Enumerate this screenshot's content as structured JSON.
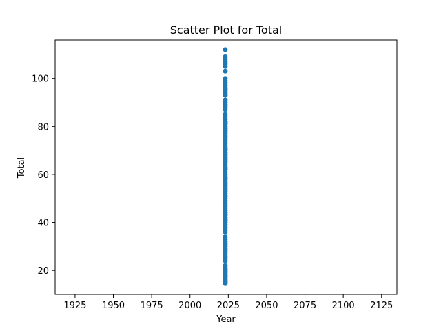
{
  "chart_data": {
    "type": "scatter",
    "title": "Scatter Plot for Total",
    "xlabel": "Year",
    "ylabel": "Total",
    "xlim": [
      1912,
      2135
    ],
    "ylim": [
      10,
      116
    ],
    "xticks": [
      1925,
      1950,
      1975,
      2000,
      2025,
      2050,
      2075,
      2100,
      2125
    ],
    "yticks": [
      20,
      40,
      60,
      80,
      100
    ],
    "grid": false,
    "marker_color": "#1f77b4",
    "series": [
      {
        "x": [
          2023,
          2023,
          2023,
          2023,
          2023,
          2023,
          2023,
          2023,
          2023,
          2023,
          2023,
          2023,
          2023,
          2023,
          2023,
          2023,
          2023,
          2023,
          2023,
          2023,
          2023,
          2023,
          2023,
          2023,
          2023,
          2023,
          2023,
          2023,
          2023,
          2023,
          2023,
          2023,
          2023,
          2023,
          2023,
          2023,
          2023,
          2023,
          2023,
          2023,
          2023,
          2023,
          2023,
          2023,
          2023,
          2023,
          2023,
          2023,
          2023,
          2023,
          2023,
          2023,
          2023,
          2023,
          2023,
          2023,
          2023,
          2023,
          2023,
          2023,
          2023,
          2023,
          2023,
          2023,
          2023,
          2023,
          2023,
          2023,
          2023,
          2023,
          2023,
          2023,
          2023,
          2023,
          2023,
          2023,
          2023,
          2023,
          2023,
          2023,
          2023,
          2023,
          2023,
          2023,
          2023,
          2023,
          2023,
          2023,
          2023,
          2023,
          2023,
          2023,
          2023,
          2023,
          2023,
          2023,
          2023,
          2023,
          2023
        ],
        "y": [
          112,
          109,
          108,
          107,
          106,
          105,
          103,
          100,
          99,
          98,
          97,
          96,
          95,
          94,
          93,
          91,
          90,
          89,
          88,
          87,
          85,
          84,
          83,
          82,
          81,
          80,
          79,
          78,
          77,
          76,
          75,
          74,
          73,
          72,
          71,
          70,
          69,
          68,
          67,
          66,
          65,
          64,
          63,
          62,
          61,
          60,
          59,
          58,
          57,
          56,
          55,
          54,
          53,
          52,
          51,
          49,
          48,
          46,
          45,
          44,
          43,
          42,
          41,
          40,
          39,
          38,
          37,
          34,
          33,
          31,
          30,
          28,
          27,
          26,
          25,
          22,
          21,
          20,
          19,
          18,
          17,
          16,
          15,
          14.5,
          15.5,
          17.5,
          19.5,
          20.5,
          24,
          29,
          32,
          36,
          47,
          50,
          58.5,
          62.5,
          70.5,
          81.5,
          95.5
        ]
      }
    ]
  }
}
